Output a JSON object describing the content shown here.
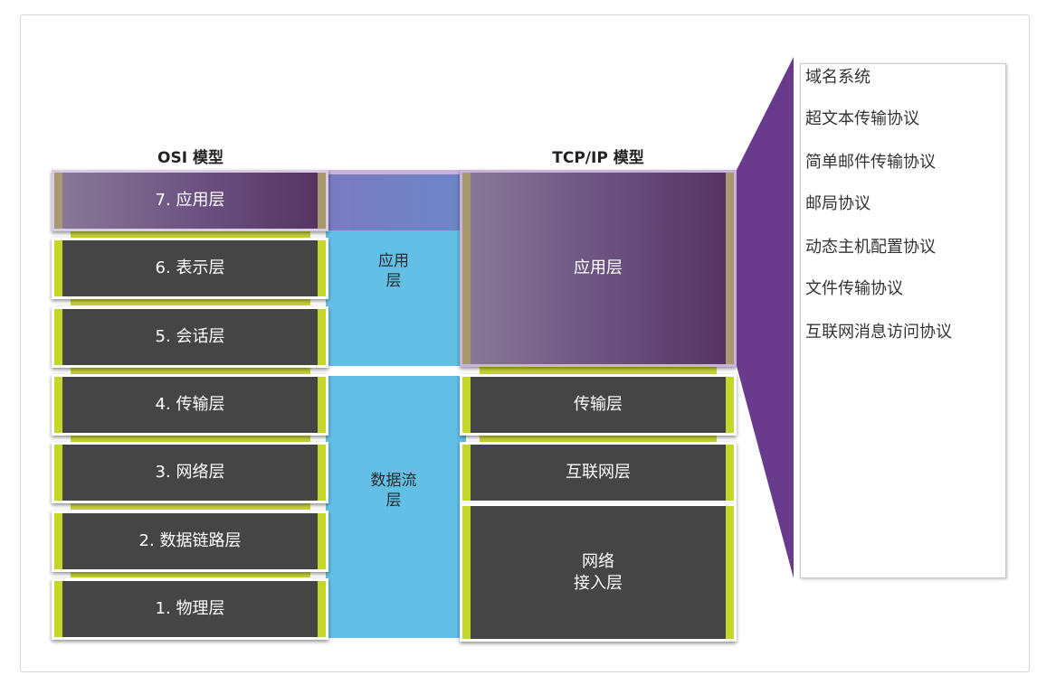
{
  "osi_title": "OSI 模型",
  "tcpip_title": "TCP/IP 模型",
  "osi_layers": [
    "7. 应用层",
    "6. 表示层",
    "5. 会话层",
    "4. 传输层",
    "3. 网络层",
    "2. 数据链路层",
    "1. 物理层"
  ],
  "band_labels": {
    "application": [
      "应用",
      "层"
    ],
    "data_flow": [
      "数据流",
      "层"
    ]
  },
  "tcpip_layers": {
    "application": "应用层",
    "transport": "传输层",
    "internet": "互联网层",
    "network_access": [
      "网络",
      "接入层"
    ]
  },
  "protocols": [
    "域名系统",
    "超文本传输协议",
    "简单邮件传输协议",
    "邮局协议",
    "动态主机配置协议",
    "文件传输协议",
    "互联网消息访问协议"
  ],
  "colors": {
    "layer_bg": "#454545",
    "accent_green": "#c3d62a",
    "band_blue": "#63bfe6",
    "highlight_purple": "#6a3a8c"
  }
}
